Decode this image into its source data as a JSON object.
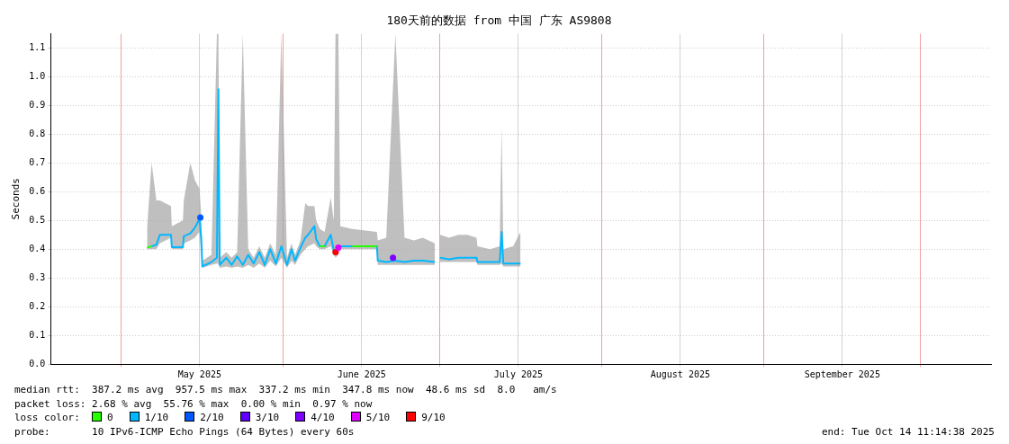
{
  "chart_data": {
    "type": "line",
    "title": "180天前的数据 from 中国 广东 AS9808",
    "ylabel": "Seconds",
    "xlim": [
      "2025-04-17T11:14",
      "2025-10-14T11:14"
    ],
    "xticks": [
      {
        "value": "2025-05-01",
        "label": null
      },
      {
        "value": "2025-05-16",
        "label": "May 2025"
      },
      {
        "value": "2025-06-01",
        "label": null
      },
      {
        "value": "2025-06-16",
        "label": "June 2025"
      },
      {
        "value": "2025-07-01",
        "label": null
      },
      {
        "value": "2025-07-16",
        "label": "July 2025"
      },
      {
        "value": "2025-08-01",
        "label": null
      },
      {
        "value": "2025-08-16",
        "label": "August 2025"
      },
      {
        "value": "2025-09-01",
        "label": null
      },
      {
        "value": "2025-09-16",
        "label": "September 2025"
      },
      {
        "value": "2025-10-01",
        "label": null
      }
    ],
    "ylim": [
      0,
      1.15
    ],
    "yticks": [
      {
        "value": 0,
        "label": "0.0"
      },
      0.1,
      0.2,
      0.3,
      0.4,
      0.5,
      0.6,
      0.7,
      0.8,
      0.9,
      {
        "value": 1,
        "label": "1.0"
      },
      1.1
    ],
    "grid": true,
    "legend": "bottom",
    "legend_title": "loss color:",
    "x": [
      "2025-05-05T22:00",
      "2025-05-06T19:00",
      "2025-05-07T17:00",
      "2025-05-08T09:00",
      "2025-05-10T12:00",
      "2025-05-10T16:00",
      "2025-05-12T19:00",
      "2025-05-12T23:00",
      "2025-05-14T05:00",
      "2025-05-15T02:00",
      "2025-05-15T23:00",
      "2025-05-16T07:00",
      "2025-05-16T12:00",
      "2025-05-18T06:00",
      "2025-05-19T07:00",
      "2025-05-19T14:00",
      "2025-05-19T20:00",
      "2025-05-21T02:00",
      "2025-05-22T03:00",
      "2025-05-23T04:00",
      "2025-05-24T06:00",
      "2025-05-25T07:00",
      "2025-05-26T08:00",
      "2025-05-27T10:00",
      "2025-05-28T11:00",
      "2025-05-29T12:00",
      "2025-05-30T14:00",
      "2025-05-31T15:00",
      "2025-06-01T17:00",
      "2025-06-02T14:00",
      "2025-06-03T06:00",
      "2025-06-04T07:00",
      "2025-06-05T05:00",
      "2025-06-05T18:00",
      "2025-06-06T23:00",
      "2025-06-07T07:00",
      "2025-06-08T00:00",
      "2025-06-08T22:00",
      "2025-06-10T02:00",
      "2025-06-10T16:00",
      "2025-06-11T00:00",
      "2025-06-11T13:00",
      "2025-06-11T22:00",
      "2025-06-14T05:00",
      "2025-06-18T22:00",
      "2025-06-19T02:00",
      "2025-06-20T17:00",
      "2025-06-22T11:00",
      "2025-06-24T05:00",
      "2025-06-26T00:00",
      "2025-06-27T17:00",
      "2025-06-30T00:00",
      "2025-06-30T12:00",
      "2025-07-01T00:00",
      "2025-07-02T18:00",
      "2025-07-04T12:00",
      "2025-07-06T06:00",
      "2025-07-08T00:00",
      "2025-07-08T04:00",
      "2025-07-10T14:00",
      "2025-07-12T10:00",
      "2025-07-12T19:00",
      "2025-07-13T03:00",
      "2025-07-15T00:00",
      "2025-07-16T10:00"
    ],
    "series": [
      {
        "name": "0",
        "color": "#26ff00",
        "x": [
          "2025-05-05T22:00",
          "2025-05-06T19:00",
          "2025-05-07T00:00",
          "2025-06-08T00:00",
          "2025-06-08T22:00",
          "2025-06-09T00:00",
          "2025-06-14T05:00",
          "2025-06-18T22:00"
        ],
        "values": [
          0.405,
          0.41,
          null,
          0.41,
          0.41,
          null,
          0.41,
          0.41
        ]
      },
      {
        "name": "1/10",
        "color": "#00b8ff",
        "values": [
          null,
          0.41,
          0.415,
          0.45,
          0.45,
          0.407,
          0.407,
          0.445,
          0.455,
          0.475,
          0.505,
          0.44,
          0.34,
          0.355,
          0.37,
          0.957,
          0.345,
          0.37,
          0.345,
          0.375,
          0.345,
          0.38,
          0.35,
          0.39,
          0.345,
          0.4,
          0.35,
          0.41,
          0.345,
          0.4,
          0.36,
          0.405,
          0.44,
          0.45,
          0.48,
          0.435,
          0.41,
          0.41,
          0.45,
          0.395,
          0.39,
          0.405,
          0.41,
          0.41,
          0.41,
          0.36,
          0.355,
          0.36,
          0.355,
          0.36,
          0.36,
          0.355,
          null,
          0.37,
          0.365,
          0.37,
          0.37,
          0.37,
          0.355,
          0.355,
          0.355,
          0.46,
          0.35,
          0.35,
          0.35
        ],
        "lower": [
          0.4,
          0.4,
          0.4,
          0.42,
          0.44,
          0.4,
          0.4,
          0.42,
          0.43,
          0.44,
          0.46,
          0.38,
          0.335,
          0.345,
          0.35,
          0.35,
          0.335,
          0.34,
          0.335,
          0.34,
          0.335,
          0.345,
          0.335,
          0.35,
          0.335,
          0.36,
          0.34,
          0.37,
          0.335,
          0.36,
          0.345,
          0.38,
          0.4,
          0.41,
          0.42,
          0.41,
          0.4,
          0.4,
          0.41,
          0.38,
          0.37,
          0.38,
          0.4,
          0.4,
          0.4,
          0.345,
          0.345,
          0.345,
          0.345,
          0.345,
          0.345,
          0.345,
          null,
          0.355,
          0.355,
          0.355,
          0.355,
          0.355,
          0.345,
          0.345,
          0.345,
          0.35,
          0.34,
          0.34,
          0.34
        ],
        "upper": [
          0.47,
          0.7,
          0.57,
          0.57,
          0.55,
          0.48,
          0.5,
          0.57,
          0.7,
          0.64,
          0.61,
          0.52,
          0.36,
          0.38,
          1.15,
          1.15,
          0.37,
          0.39,
          0.37,
          0.39,
          1.15,
          0.4,
          0.37,
          0.41,
          0.37,
          0.42,
          0.38,
          1.15,
          0.37,
          0.42,
          0.38,
          0.43,
          0.56,
          0.55,
          0.55,
          0.5,
          0.47,
          0.46,
          0.58,
          0.5,
          1.15,
          1.15,
          0.48,
          0.47,
          0.46,
          0.43,
          0.44,
          1.15,
          0.44,
          0.43,
          0.44,
          0.42,
          null,
          0.45,
          0.44,
          0.45,
          0.45,
          0.44,
          0.41,
          0.4,
          0.41,
          0.83,
          0.4,
          0.41,
          0.46
        ]
      },
      {
        "name": "2/10",
        "color": "#0059ff",
        "type": "scatter",
        "x": [
          "2025-05-16T03:00"
        ],
        "values": [
          0.51
        ]
      },
      {
        "name": "3/10",
        "color": "#5e00ff",
        "values": [
          null,
          null,
          null,
          null,
          null,
          null,
          null,
          null,
          null,
          null,
          null,
          null,
          null,
          null,
          null,
          null,
          null,
          null,
          null,
          null,
          null,
          null,
          null,
          null,
          null,
          null,
          null,
          null,
          null,
          null,
          null,
          null,
          null,
          null,
          null,
          null,
          null,
          null,
          null,
          null,
          null,
          null,
          null,
          null,
          null,
          null,
          null,
          null,
          null,
          null,
          null,
          null,
          null,
          null,
          null,
          null,
          null,
          null,
          null,
          null,
          null,
          null,
          null,
          null,
          null
        ]
      },
      {
        "name": "4/10",
        "color": "#7e00ff",
        "type": "scatter",
        "x": [
          "2025-06-22T00:00"
        ],
        "values": [
          0.37
        ]
      },
      {
        "name": "5/10",
        "color": "#dd00ff",
        "type": "scatter",
        "x": [
          "2025-06-11T13:00"
        ],
        "values": [
          0.405
        ]
      },
      {
        "name": "9/10",
        "color": "#ff0000",
        "type": "scatter",
        "x": [
          "2025-06-11T00:00"
        ],
        "values": [
          0.39
        ]
      }
    ],
    "annotations": [
      "median rtt:  387.2 ms avg  957.5 ms max  337.2 ms min  347.8 ms now  48.6 ms sd  8.0   am/s",
      "packet loss: 2.68 % avg  55.76 % max  0.00 % min  0.97 % now",
      "probe:       10 IPv6-ICMP Echo Pings (64 Bytes) every 60s",
      "end: Tue Oct 14 11:14:38 2025"
    ]
  }
}
